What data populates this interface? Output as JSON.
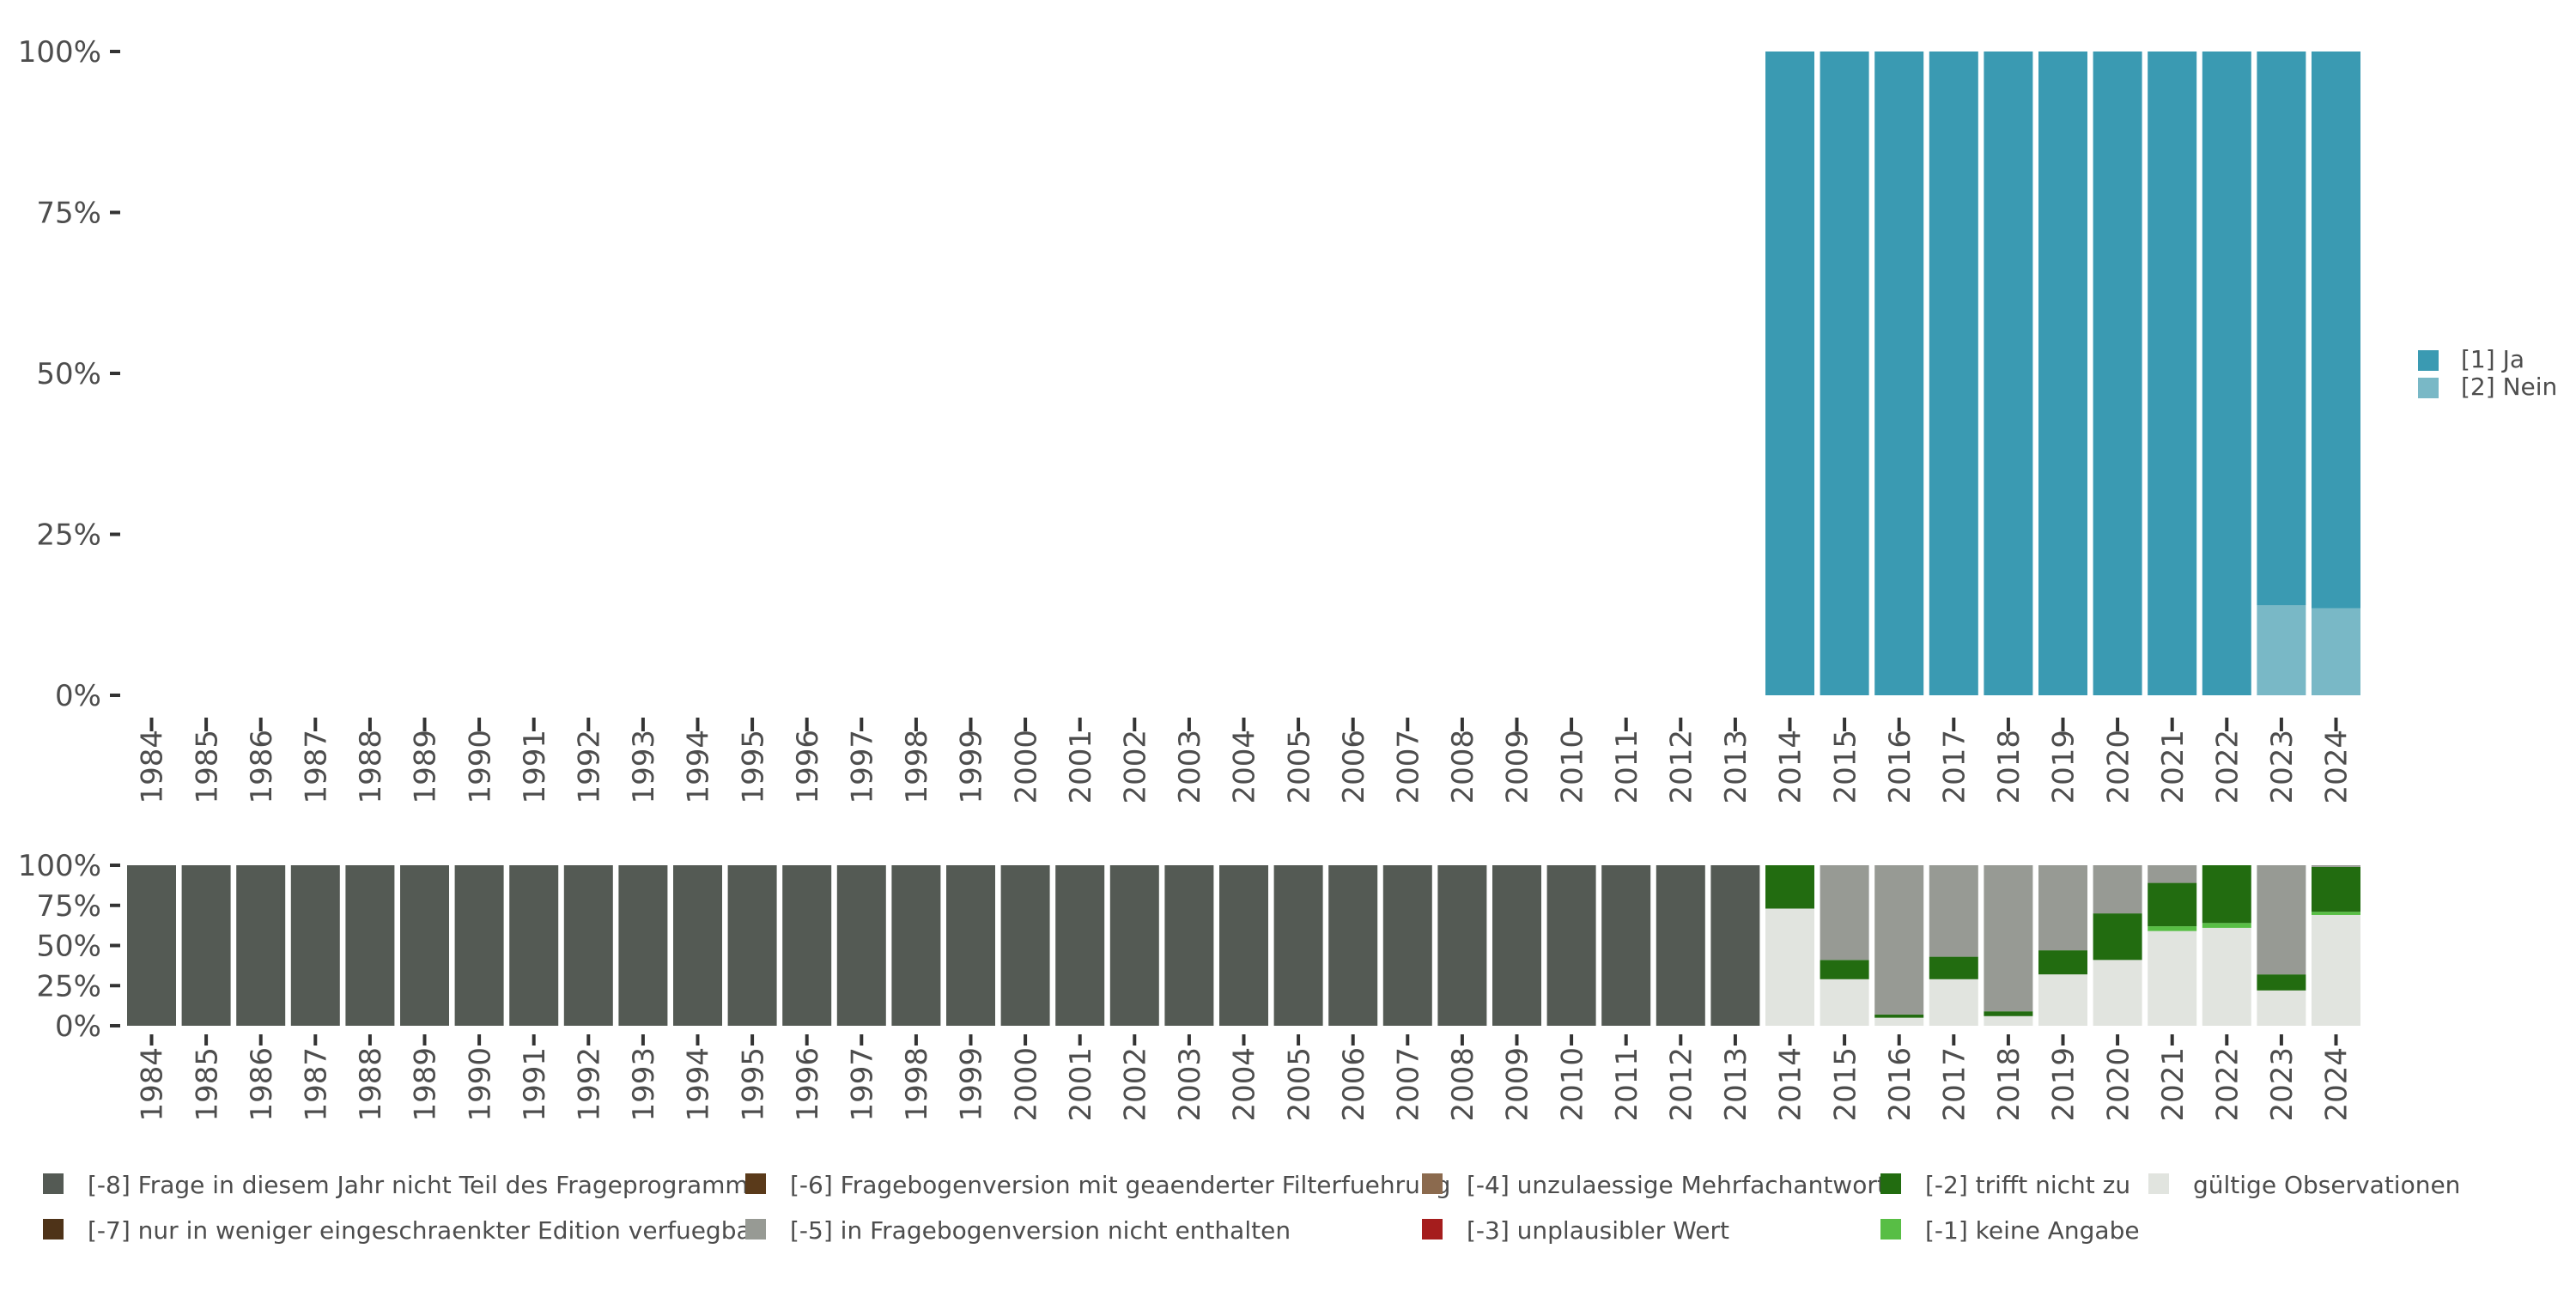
{
  "chart_data": [
    {
      "type": "bar",
      "stacked": true,
      "categories": [
        "1984",
        "1985",
        "1986",
        "1987",
        "1988",
        "1989",
        "1990",
        "1991",
        "1992",
        "1993",
        "1994",
        "1995",
        "1996",
        "1997",
        "1998",
        "1999",
        "2000",
        "2001",
        "2002",
        "2003",
        "2004",
        "2005",
        "2006",
        "2007",
        "2008",
        "2009",
        "2010",
        "2011",
        "2012",
        "2013",
        "2014",
        "2015",
        "2016",
        "2017",
        "2018",
        "2019",
        "2020",
        "2021",
        "2022",
        "2023",
        "2024"
      ],
      "series": [
        {
          "name": "[2] Nein",
          "color": "#79b8c6",
          "values": [
            null,
            null,
            null,
            null,
            null,
            null,
            null,
            null,
            null,
            null,
            null,
            null,
            null,
            null,
            null,
            null,
            null,
            null,
            null,
            null,
            null,
            null,
            null,
            null,
            null,
            null,
            null,
            null,
            null,
            null,
            0,
            0,
            0,
            0,
            0,
            0,
            0,
            0,
            0,
            14,
            13.5
          ]
        },
        {
          "name": "[1] Ja",
          "color": "#3a9ab2",
          "values": [
            null,
            null,
            null,
            null,
            null,
            null,
            null,
            null,
            null,
            null,
            null,
            null,
            null,
            null,
            null,
            null,
            null,
            null,
            null,
            null,
            null,
            null,
            null,
            null,
            null,
            null,
            null,
            null,
            null,
            null,
            100,
            100,
            100,
            100,
            100,
            100,
            100,
            100,
            100,
            86,
            86.5
          ]
        }
      ],
      "ylim": [
        0,
        100
      ],
      "yticks": [
        "0%",
        "25%",
        "50%",
        "75%",
        "100%"
      ],
      "ytick_values": [
        0,
        25,
        50,
        75,
        100
      ],
      "legend": {
        "position": "right",
        "items": [
          {
            "label": "[1] Ja",
            "color": "#3a9ab2"
          },
          {
            "label": "[2] Nein",
            "color": "#79b8c6"
          }
        ]
      }
    },
    {
      "type": "bar",
      "stacked": true,
      "categories": [
        "1984",
        "1985",
        "1986",
        "1987",
        "1988",
        "1989",
        "1990",
        "1991",
        "1992",
        "1993",
        "1994",
        "1995",
        "1996",
        "1997",
        "1998",
        "1999",
        "2000",
        "2001",
        "2002",
        "2003",
        "2004",
        "2005",
        "2006",
        "2007",
        "2008",
        "2009",
        "2010",
        "2011",
        "2012",
        "2013",
        "2014",
        "2015",
        "2016",
        "2017",
        "2018",
        "2019",
        "2020",
        "2021",
        "2022",
        "2023",
        "2024"
      ],
      "series": [
        {
          "name": "gültige Observationen",
          "color": "#e1e4df",
          "values": [
            0,
            0,
            0,
            0,
            0,
            0,
            0,
            0,
            0,
            0,
            0,
            0,
            0,
            0,
            0,
            0,
            0,
            0,
            0,
            0,
            0,
            0,
            0,
            0,
            0,
            0,
            0,
            0,
            0,
            0,
            73,
            29,
            5,
            29,
            6,
            32,
            41,
            59,
            61,
            22,
            69
          ]
        },
        {
          "name": "[-1] keine Angabe",
          "color": "#58be45",
          "values": [
            0,
            0,
            0,
            0,
            0,
            0,
            0,
            0,
            0,
            0,
            0,
            0,
            0,
            0,
            0,
            0,
            0,
            0,
            0,
            0,
            0,
            0,
            0,
            0,
            0,
            0,
            0,
            0,
            0,
            0,
            0,
            0,
            0,
            0,
            0,
            0,
            0,
            3,
            3,
            0,
            2
          ]
        },
        {
          "name": "[-2] trifft nicht zu",
          "color": "#226c10",
          "values": [
            0,
            0,
            0,
            0,
            0,
            0,
            0,
            0,
            0,
            0,
            0,
            0,
            0,
            0,
            0,
            0,
            0,
            0,
            0,
            0,
            0,
            0,
            0,
            0,
            0,
            0,
            0,
            0,
            0,
            0,
            27,
            12,
            2,
            14,
            3,
            15,
            29,
            27,
            36,
            10,
            28
          ]
        },
        {
          "name": "[-3] unplausibler Wert",
          "color": "#a51d1d",
          "values": [
            0,
            0,
            0,
            0,
            0,
            0,
            0,
            0,
            0,
            0,
            0,
            0,
            0,
            0,
            0,
            0,
            0,
            0,
            0,
            0,
            0,
            0,
            0,
            0,
            0,
            0,
            0,
            0,
            0,
            0,
            0,
            0,
            0,
            0,
            0,
            0,
            0,
            0,
            0,
            0,
            0
          ]
        },
        {
          "name": "[-4] unzulaessige Mehrfachantwort",
          "color": "#8b6a4e",
          "values": [
            0,
            0,
            0,
            0,
            0,
            0,
            0,
            0,
            0,
            0,
            0,
            0,
            0,
            0,
            0,
            0,
            0,
            0,
            0,
            0,
            0,
            0,
            0,
            0,
            0,
            0,
            0,
            0,
            0,
            0,
            0,
            0,
            0,
            0,
            0,
            0,
            0,
            0,
            0,
            0,
            0
          ]
        },
        {
          "name": "[-5] in Fragebogenversion nicht enthalten",
          "color": "#979a94",
          "values": [
            0,
            0,
            0,
            0,
            0,
            0,
            0,
            0,
            0,
            0,
            0,
            0,
            0,
            0,
            0,
            0,
            0,
            0,
            0,
            0,
            0,
            0,
            0,
            0,
            0,
            0,
            0,
            0,
            0,
            0,
            0,
            59,
            93,
            57,
            91,
            53,
            30,
            11,
            0,
            68,
            1
          ]
        },
        {
          "name": "[-6] Fragebogenversion mit geaenderter Filterfuehrung",
          "color": "#5a3a1a",
          "values": [
            0,
            0,
            0,
            0,
            0,
            0,
            0,
            0,
            0,
            0,
            0,
            0,
            0,
            0,
            0,
            0,
            0,
            0,
            0,
            0,
            0,
            0,
            0,
            0,
            0,
            0,
            0,
            0,
            0,
            0,
            0,
            0,
            0,
            0,
            0,
            0,
            0,
            0,
            0,
            0,
            0
          ]
        },
        {
          "name": "[-7] nur in weniger eingeschraenkter Edition verfuegbar",
          "color": "#4e3318",
          "values": [
            0,
            0,
            0,
            0,
            0,
            0,
            0,
            0,
            0,
            0,
            0,
            0,
            0,
            0,
            0,
            0,
            0,
            0,
            0,
            0,
            0,
            0,
            0,
            0,
            0,
            0,
            0,
            0,
            0,
            0,
            0,
            0,
            0,
            0,
            0,
            0,
            0,
            0,
            0,
            0,
            0
          ]
        },
        {
          "name": "[-8] Frage in diesem Jahr nicht Teil des Frageprogramms",
          "color": "#545a54",
          "values": [
            100,
            100,
            100,
            100,
            100,
            100,
            100,
            100,
            100,
            100,
            100,
            100,
            100,
            100,
            100,
            100,
            100,
            100,
            100,
            100,
            100,
            100,
            100,
            100,
            100,
            100,
            100,
            100,
            100,
            100,
            0,
            0,
            0,
            0,
            0,
            0,
            0,
            0,
            0,
            0,
            0
          ]
        }
      ],
      "ylim": [
        0,
        100
      ],
      "yticks": [
        "0%",
        "25%",
        "50%",
        "75%",
        "100%"
      ],
      "ytick_values": [
        0,
        25,
        50,
        75,
        100
      ],
      "legend": {
        "position": "bottom",
        "rows": [
          [
            {
              "label": "[-8] Frage in diesem Jahr nicht Teil des Frageprogramms",
              "color": "#545a54"
            },
            {
              "label": "[-6] Fragebogenversion mit geaenderter Filterfuehrung",
              "color": "#5a3a1a"
            },
            {
              "label": "[-4] unzulaessige Mehrfachantwort",
              "color": "#8b6a4e"
            },
            {
              "label": "[-2] trifft nicht zu",
              "color": "#226c10"
            },
            {
              "label": "gültige Observationen",
              "color": "#e1e4df"
            }
          ],
          [
            {
              "label": "[-7] nur in weniger eingeschraenkter Edition verfuegbar",
              "color": "#4e3318"
            },
            {
              "label": "[-5] in Fragebogenversion nicht enthalten",
              "color": "#979a94"
            },
            {
              "label": "[-3] unplausibler Wert",
              "color": "#a51d1d"
            },
            {
              "label": "[-1] keine Angabe",
              "color": "#58be45"
            }
          ]
        ]
      }
    }
  ]
}
